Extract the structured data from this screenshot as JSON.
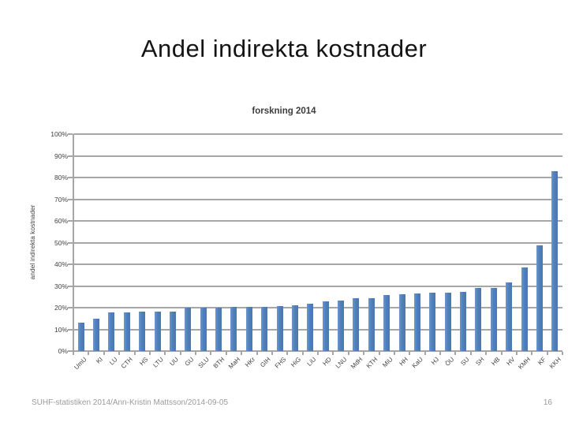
{
  "slide": {
    "title": "Andel indirekta kostnader",
    "footer_left": "SUHF-statistiken 2014/Ann-Kristin Mattsson/2014-09-05",
    "page_number": "16"
  },
  "chart_data": {
    "type": "bar",
    "title": "forskning 2014",
    "xlabel": "",
    "ylabel": "andel indirekta kostnader",
    "ylim": [
      0,
      100
    ],
    "ytick_step": 10,
    "ytick_format": "percent",
    "grid": true,
    "legend": "none",
    "bar_color": "#4F81BD",
    "gridline_color": "#A6A6A6",
    "categories": [
      "UmU",
      "KI",
      "LU",
      "CTH",
      "HS",
      "LTU",
      "UU",
      "GU",
      "SLU",
      "BTH",
      "MaH",
      "HKr",
      "GIH",
      "FHS",
      "HiG",
      "LiU",
      "HD",
      "LNU",
      "MdH",
      "KTH",
      "MiU",
      "HH",
      "KaU",
      "HJ",
      "ÖU",
      "SU",
      "SH",
      "HB",
      "HV",
      "KMH",
      "KF",
      "KKH"
    ],
    "values": [
      13.2,
      15.0,
      17.9,
      17.9,
      18.3,
      18.3,
      18.3,
      19.9,
      20.0,
      20.1,
      20.3,
      20.5,
      20.5,
      20.9,
      21.1,
      21.9,
      23.0,
      23.4,
      24.2,
      24.5,
      25.7,
      26.1,
      26.4,
      26.8,
      27.0,
      27.4,
      29.0,
      29.2,
      31.5,
      38.4,
      48.6,
      83.0
    ]
  }
}
